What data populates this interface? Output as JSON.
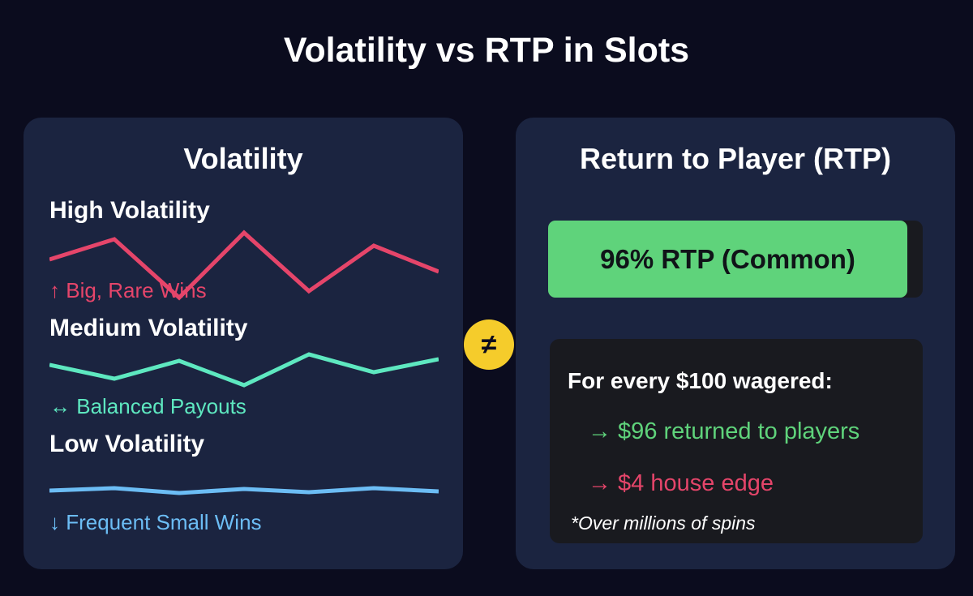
{
  "title": "Volatility vs RTP in Slots",
  "left_panel": {
    "heading": "Volatility",
    "levels": [
      {
        "label": "High Volatility",
        "description": "↑ Big, Rare Wins",
        "color": "#e5456a"
      },
      {
        "label": "Medium Volatility",
        "description": "↔ Balanced Payouts",
        "color": "#5ee8c0"
      },
      {
        "label": "Low Volatility",
        "description": "↓ Frequent Small Wins",
        "color": "#6cbdf5"
      }
    ]
  },
  "separator": "≠",
  "right_panel": {
    "heading": "Return to Player (RTP)",
    "rtp_badge": "96% RTP (Common)",
    "info": {
      "heading": "For every $100 wagered:",
      "lines": [
        {
          "text": "→ $96 returned to players",
          "color": "#5fd37b"
        },
        {
          "text": "→ $4 house edge",
          "color": "#e5456a"
        }
      ],
      "note": "*Over millions of spins"
    }
  },
  "colors": {
    "background": "#0b0c1e",
    "panel": "#1b2440",
    "accent_yellow": "#f5cc2b",
    "rtp_green": "#5fd37b"
  }
}
